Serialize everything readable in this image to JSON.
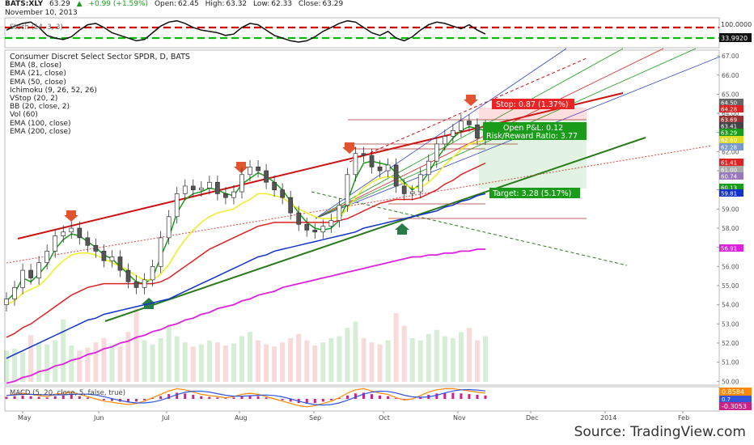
{
  "header": {
    "symbol": "BATS:XLY",
    "last": "63.29",
    "change": "+0.99 (+1.59%)",
    "open_label": "Open:",
    "open": "62.45",
    "high_label": "High:",
    "high": "63.32",
    "low_label": "Low:",
    "low": "62.33",
    "close_label": "Close:",
    "close": "63.29",
    "date": "November 10, 2013",
    "up_color": "#1a9c1a"
  },
  "stoch_panel": {
    "label": "Stoch (14, 3, 3)",
    "levels": [
      100.0,
      33.992
    ],
    "level_labels": [
      "100.0000",
      "33.9920"
    ],
    "upper_color": "#cc0000",
    "lower_color": "#00bb00"
  },
  "main_legend": [
    "Consumer Discret Select Sector SPDR, D, BATS",
    "EMA (8, close)",
    "EMA (21, close)",
    "EMA (50, close)",
    "Ichimoku (9, 26, 52, 26)",
    "VStop (20, 2)",
    "BB (20, close, 2)",
    "Vol (60)",
    "EMA (100, close)",
    "EMA (200, close)"
  ],
  "annotations": {
    "stop": "Stop: 0.87 (1.37%)",
    "pnl": "Open P&L: 0.12",
    "rr": "Risk/Reward Ratio: 3.77",
    "target": "Target: 3.28 (5.17%)",
    "stop_color": "#ee2222",
    "target_color": "#1a9c1a"
  },
  "macd_panel": {
    "label": "MACD (5, 20, close, 5, false, true)",
    "value_labels": [
      "0.8584",
      "0.7"
    ],
    "neg_label": "-0.3053",
    "colors": [
      "#ff8800",
      "#3355dd",
      "#cc2288"
    ]
  },
  "source": "Source: TradingView.com",
  "chart_data": {
    "type": "line",
    "title": "Consumer Discret Select Sector SPDR, D, BATS",
    "x_ticks": [
      "May",
      "Jun",
      "Jul",
      "Aug",
      "Sep",
      "Oct",
      "Nov",
      "Dec",
      "2014",
      "Feb"
    ],
    "y_ticks": [
      50,
      51,
      52,
      53,
      54,
      55,
      56,
      57,
      58,
      59,
      60,
      61,
      62,
      63,
      64,
      65,
      66,
      67
    ],
    "y_tick_labels": [
      "50.00",
      "51.00",
      "52.00",
      "53.00",
      "54.00",
      "55.00",
      "56.00",
      "57.00",
      "58.00",
      "59.00",
      "60.00",
      "61.00",
      "62.00",
      "63.00",
      "64.00",
      "65.00",
      "66.00",
      "67.00"
    ],
    "ylim": [
      49.8,
      67.3
    ],
    "price_labels": [
      {
        "text": "64.50",
        "color": "#666666"
      },
      {
        "text": "64.28",
        "color": "#dd2222"
      },
      {
        "text": "63.69",
        "color": "#993333"
      },
      {
        "text": "63.41",
        "color": "#444444"
      },
      {
        "text": "63.29",
        "color": "#1a9c1a"
      },
      {
        "text": "62.60",
        "color": "#dddd22"
      },
      {
        "text": "62.28",
        "color": "#7799cc"
      },
      {
        "text": "61.41",
        "color": "#dd2222"
      },
      {
        "text": "61.00",
        "color": "#aaaaaa"
      },
      {
        "text": "60.74",
        "color": "#9977bb"
      },
      {
        "text": "60.13",
        "color": "#1a9c1a"
      },
      {
        "text": "59.81",
        "color": "#1133cc"
      },
      {
        "text": "56.91",
        "color": "#dd22dd"
      }
    ],
    "series": [
      {
        "name": "EMA (8, close)",
        "color": "#1a9c1a",
        "values": [
          54.2,
          54.6,
          55.4,
          55.2,
          55.6,
          56.1,
          56.9,
          57.4,
          57.7,
          57.6,
          57.3,
          57.0,
          56.6,
          56.4,
          56.0,
          55.6,
          55.2,
          55.1,
          55.4,
          56.5,
          57.5,
          58.8,
          59.5,
          59.8,
          59.9,
          60.1,
          60.0,
          59.8,
          59.7,
          60.3,
          60.6,
          60.9,
          60.7,
          60.4,
          60.0,
          59.4,
          58.8,
          58.3,
          58.0,
          57.9,
          58.0,
          58.4,
          59.4,
          60.6,
          61.4,
          61.5,
          61.4,
          61.3,
          60.9,
          60.4,
          60.0,
          60.3,
          60.9,
          61.6,
          62.2,
          62.7,
          63.1,
          63.3,
          63.2,
          63.1
        ]
      },
      {
        "name": "EMA (21, close)",
        "color": "#eeee22",
        "values": [
          54.0,
          54.2,
          54.6,
          54.8,
          55.0,
          55.4,
          55.9,
          56.3,
          56.6,
          56.7,
          56.7,
          56.6,
          56.4,
          56.2,
          56.0,
          55.8,
          55.5,
          55.3,
          55.3,
          55.6,
          56.1,
          56.8,
          57.4,
          57.9,
          58.3,
          58.6,
          58.8,
          58.9,
          59.0,
          59.3,
          59.5,
          59.8,
          59.8,
          59.7,
          59.6,
          59.3,
          59.0,
          58.8,
          58.6,
          58.5,
          58.5,
          58.6,
          59.0,
          59.6,
          60.1,
          60.4,
          60.6,
          60.7,
          60.6,
          60.3,
          60.1,
          60.1,
          60.4,
          60.8,
          61.3,
          61.7,
          62.1,
          62.4,
          62.5,
          62.6
        ]
      },
      {
        "name": "EMA (50, close)",
        "color": "#dd2222",
        "values": [
          52.3,
          52.5,
          52.8,
          53.0,
          53.3,
          53.6,
          53.9,
          54.2,
          54.5,
          54.7,
          54.9,
          55.0,
          55.1,
          55.1,
          55.1,
          55.1,
          55.1,
          55.1,
          55.1,
          55.2,
          55.4,
          55.7,
          56.0,
          56.3,
          56.6,
          56.9,
          57.1,
          57.3,
          57.5,
          57.7,
          57.9,
          58.1,
          58.2,
          58.3,
          58.3,
          58.3,
          58.3,
          58.3,
          58.3,
          58.3,
          58.3,
          58.4,
          58.5,
          58.7,
          58.9,
          59.1,
          59.3,
          59.4,
          59.5,
          59.5,
          59.5,
          59.6,
          59.8,
          60.0,
          60.3,
          60.5,
          60.8,
          61.0,
          61.2,
          61.4
        ]
      },
      {
        "name": "EMA (100, close)",
        "color": "#1133cc",
        "values": [
          51.2,
          51.4,
          51.6,
          51.8,
          52.0,
          52.2,
          52.4,
          52.6,
          52.8,
          53.0,
          53.2,
          53.3,
          53.5,
          53.6,
          53.7,
          53.8,
          53.9,
          54.0,
          54.1,
          54.2,
          54.3,
          54.5,
          54.7,
          54.9,
          55.1,
          55.3,
          55.5,
          55.7,
          55.9,
          56.1,
          56.3,
          56.5,
          56.6,
          56.8,
          56.9,
          57.0,
          57.1,
          57.2,
          57.3,
          57.4,
          57.5,
          57.6,
          57.7,
          57.8,
          58.0,
          58.1,
          58.2,
          58.3,
          58.4,
          58.5,
          58.6,
          58.7,
          58.8,
          58.9,
          59.1,
          59.2,
          59.4,
          59.5,
          59.7,
          59.8
        ]
      },
      {
        "name": "EMA (200, close)",
        "color": "#dd22dd",
        "values": [
          49.9,
          50.0,
          50.2,
          50.3,
          50.5,
          50.6,
          50.8,
          50.9,
          51.1,
          51.2,
          51.4,
          51.5,
          51.7,
          51.8,
          52.0,
          52.1,
          52.3,
          52.4,
          52.6,
          52.7,
          52.9,
          53.0,
          53.2,
          53.3,
          53.5,
          53.6,
          53.8,
          53.9,
          54.0,
          54.2,
          54.3,
          54.5,
          54.6,
          54.7,
          54.9,
          55.0,
          55.1,
          55.2,
          55.3,
          55.4,
          55.5,
          55.6,
          55.7,
          55.8,
          55.9,
          56.0,
          56.1,
          56.2,
          56.3,
          56.4,
          56.5,
          56.5,
          56.6,
          56.6,
          56.7,
          56.7,
          56.8,
          56.8,
          56.9,
          56.9
        ]
      },
      {
        "name": "Close",
        "color": "#333333",
        "values": [
          54.3,
          54.9,
          55.8,
          55.4,
          56.2,
          56.8,
          57.6,
          57.8,
          58.0,
          57.5,
          57.1,
          56.8,
          56.3,
          56.5,
          55.8,
          55.2,
          54.9,
          55.3,
          56.0,
          57.5,
          58.6,
          59.8,
          60.2,
          60.0,
          60.1,
          60.4,
          59.8,
          59.6,
          59.9,
          60.8,
          61.2,
          61.0,
          60.4,
          60.0,
          59.6,
          58.8,
          58.2,
          57.9,
          57.8,
          58.1,
          58.4,
          59.2,
          60.8,
          61.9,
          61.8,
          61.2,
          61.0,
          61.3,
          60.2,
          59.8,
          59.9,
          60.8,
          61.5,
          62.4,
          62.8,
          63.1,
          63.6,
          63.4,
          62.7,
          63.3
        ]
      }
    ],
    "volume": [
      30,
      32,
      28,
      45,
      38,
      36,
      40,
      60,
      35,
      30,
      33,
      38,
      42,
      36,
      34,
      48,
      70,
      40,
      36,
      42,
      55,
      44,
      38,
      34,
      36,
      40,
      38,
      35,
      37,
      44,
      48,
      40,
      36,
      34,
      38,
      42,
      46,
      40,
      35,
      38,
      42,
      44,
      52,
      58,
      42,
      38,
      36,
      40,
      66,
      54,
      42,
      40,
      46,
      50,
      44,
      42,
      48,
      52,
      40,
      44
    ],
    "stoch": [
      60,
      75,
      85,
      90,
      70,
      40,
      30,
      25,
      35,
      60,
      80,
      85,
      70,
      50,
      40,
      30,
      20,
      25,
      50,
      75,
      90,
      95,
      85,
      70,
      60,
      55,
      50,
      40,
      45,
      70,
      85,
      80,
      60,
      40,
      30,
      20,
      15,
      20,
      35,
      55,
      70,
      85,
      95,
      90,
      70,
      50,
      40,
      55,
      30,
      20,
      35,
      60,
      80,
      90,
      85,
      75,
      65,
      80,
      60,
      45
    ],
    "macd": [
      0.3,
      0.4,
      0.5,
      0.4,
      0.3,
      0.2,
      0.4,
      0.5,
      0.6,
      0.4,
      0.2,
      0.0,
      -0.2,
      -0.3,
      -0.4,
      -0.5,
      -0.4,
      -0.2,
      0.1,
      0.4,
      0.7,
      0.9,
      0.8,
      0.6,
      0.4,
      0.3,
      0.2,
      0.1,
      0.2,
      0.4,
      0.5,
      0.4,
      0.2,
      0.0,
      -0.2,
      -0.4,
      -0.6,
      -0.7,
      -0.6,
      -0.4,
      -0.2,
      0.1,
      0.5,
      0.8,
      0.9,
      0.7,
      0.5,
      0.4,
      0.1,
      -0.1,
      0.0,
      0.3,
      0.6,
      0.8,
      0.9,
      0.9,
      0.8,
      0.7,
      0.6,
      0.5
    ]
  }
}
